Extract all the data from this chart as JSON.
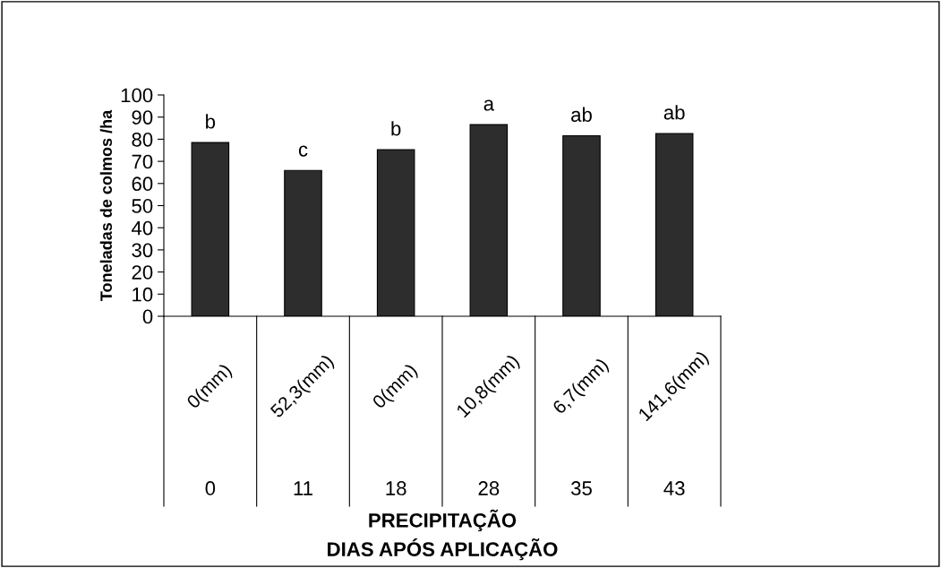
{
  "chart_data": {
    "type": "bar",
    "xlabel": "PRECIPITAÇÃO\nDIAS APÓS APLICAÇÃO",
    "ylabel": "Toneladas de colmos /ha",
    "categories": [
      "0(mm)",
      "52,3(mm)",
      "0(mm)",
      "10,8(mm)",
      "6,7(mm)",
      "141,6(mm)"
    ],
    "values": [
      78.5,
      65.9,
      75.3,
      86.6,
      81.6,
      82.6
    ],
    "color": "#2d2d2d",
    "value_labels": [
      "b",
      "c",
      "b",
      "a",
      "ab",
      "ab"
    ],
    "ylim": [
      0,
      100
    ],
    "yticks": [
      0,
      10,
      20,
      30,
      40,
      50,
      60,
      70,
      80,
      90,
      100
    ],
    "grid": false,
    "annotations": [
      "0",
      "11",
      "18",
      "28",
      "35",
      "43"
    ]
  }
}
